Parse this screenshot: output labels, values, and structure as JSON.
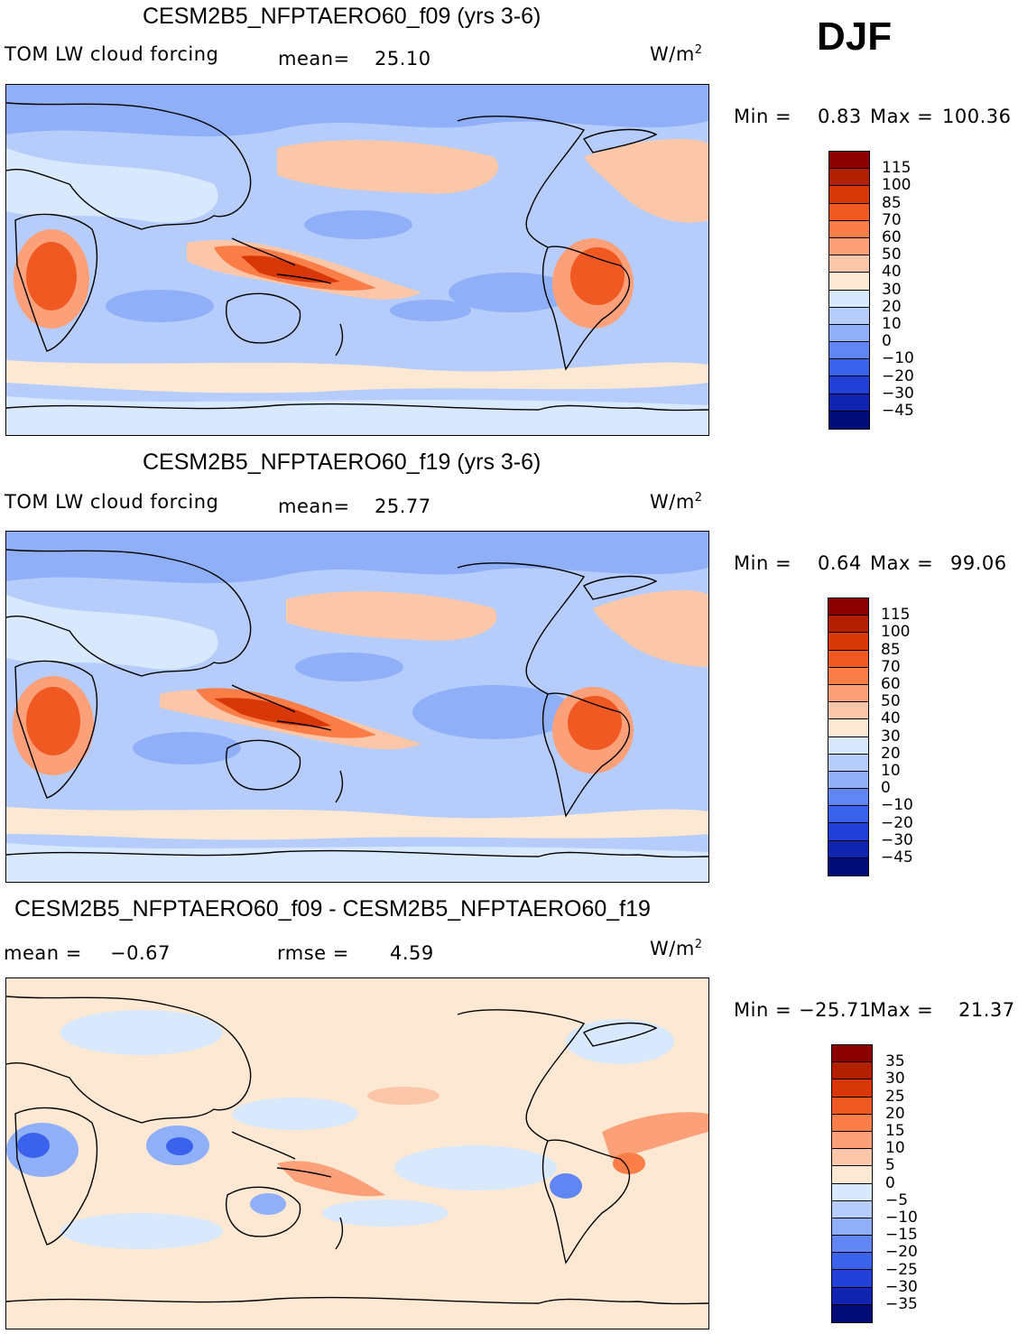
{
  "season": "DJF",
  "units": "W/m",
  "units_sup": "2",
  "panels": [
    {
      "title": "CESM2B5_NFPTAERO60_f09 (yrs 3-6)",
      "variable": "TOM LW cloud forcing",
      "mean_label": "mean=",
      "mean_value": "25.10",
      "min_label": "Min =",
      "min_value": "0.83",
      "max_label": "Max =",
      "max_value": "100.36",
      "colorbar_labels": [
        "115",
        "100",
        "85",
        "70",
        "60",
        "50",
        "40",
        "30",
        "20",
        "10",
        "0",
        "−10",
        "−20",
        "−30",
        "−45"
      ],
      "colorbar_colors": [
        "#8b0000",
        "#b22000",
        "#d83808",
        "#f05a22",
        "#fb7d48",
        "#fca07a",
        "#fcc7a8",
        "#fde8d4",
        "#d8e8fd",
        "#b6cdfb",
        "#8fb0f8",
        "#5f86f2",
        "#3b62ec",
        "#2040d8",
        "#1024b0",
        "#000c78"
      ]
    },
    {
      "title": "CESM2B5_NFPTAERO60_f19 (yrs 3-6)",
      "variable": "TOM LW cloud forcing",
      "mean_label": "mean=",
      "mean_value": "25.77",
      "min_label": "Min =",
      "min_value": "0.64",
      "max_label": "Max =",
      "max_value": "99.06",
      "colorbar_labels": [
        "115",
        "100",
        "85",
        "70",
        "60",
        "50",
        "40",
        "30",
        "20",
        "10",
        "0",
        "−10",
        "−20",
        "−30",
        "−45"
      ],
      "colorbar_colors": [
        "#8b0000",
        "#b22000",
        "#d83808",
        "#f05a22",
        "#fb7d48",
        "#fca07a",
        "#fcc7a8",
        "#fde8d4",
        "#d8e8fd",
        "#b6cdfb",
        "#8fb0f8",
        "#5f86f2",
        "#3b62ec",
        "#2040d8",
        "#1024b0",
        "#000c78"
      ]
    },
    {
      "title": "CESM2B5_NFPTAERO60_f09 - CESM2B5_NFPTAERO60_f19",
      "mean_label": "mean =",
      "mean_value": "−0.67",
      "rmse_label": "rmse =",
      "rmse_value": "4.59",
      "min_label": "Min =",
      "min_value": "−25.71",
      "max_label": "Max =",
      "max_value": "21.37",
      "colorbar_labels": [
        "35",
        "30",
        "25",
        "20",
        "15",
        "10",
        "5",
        "0",
        "−5",
        "−10",
        "−15",
        "−20",
        "−25",
        "−30",
        "−35"
      ],
      "colorbar_colors": [
        "#8b0000",
        "#b22000",
        "#d83808",
        "#f05a22",
        "#fb7d48",
        "#fca07a",
        "#fcc7a8",
        "#fde8d4",
        "#d8e8fd",
        "#b6cdfb",
        "#8fb0f8",
        "#5f86f2",
        "#3b62ec",
        "#2040d8",
        "#1024b0",
        "#000c78"
      ]
    }
  ],
  "colors": {
    "map_default": "#b6cdfb",
    "diff_default": "#fde8d4",
    "coast": "#000000"
  }
}
